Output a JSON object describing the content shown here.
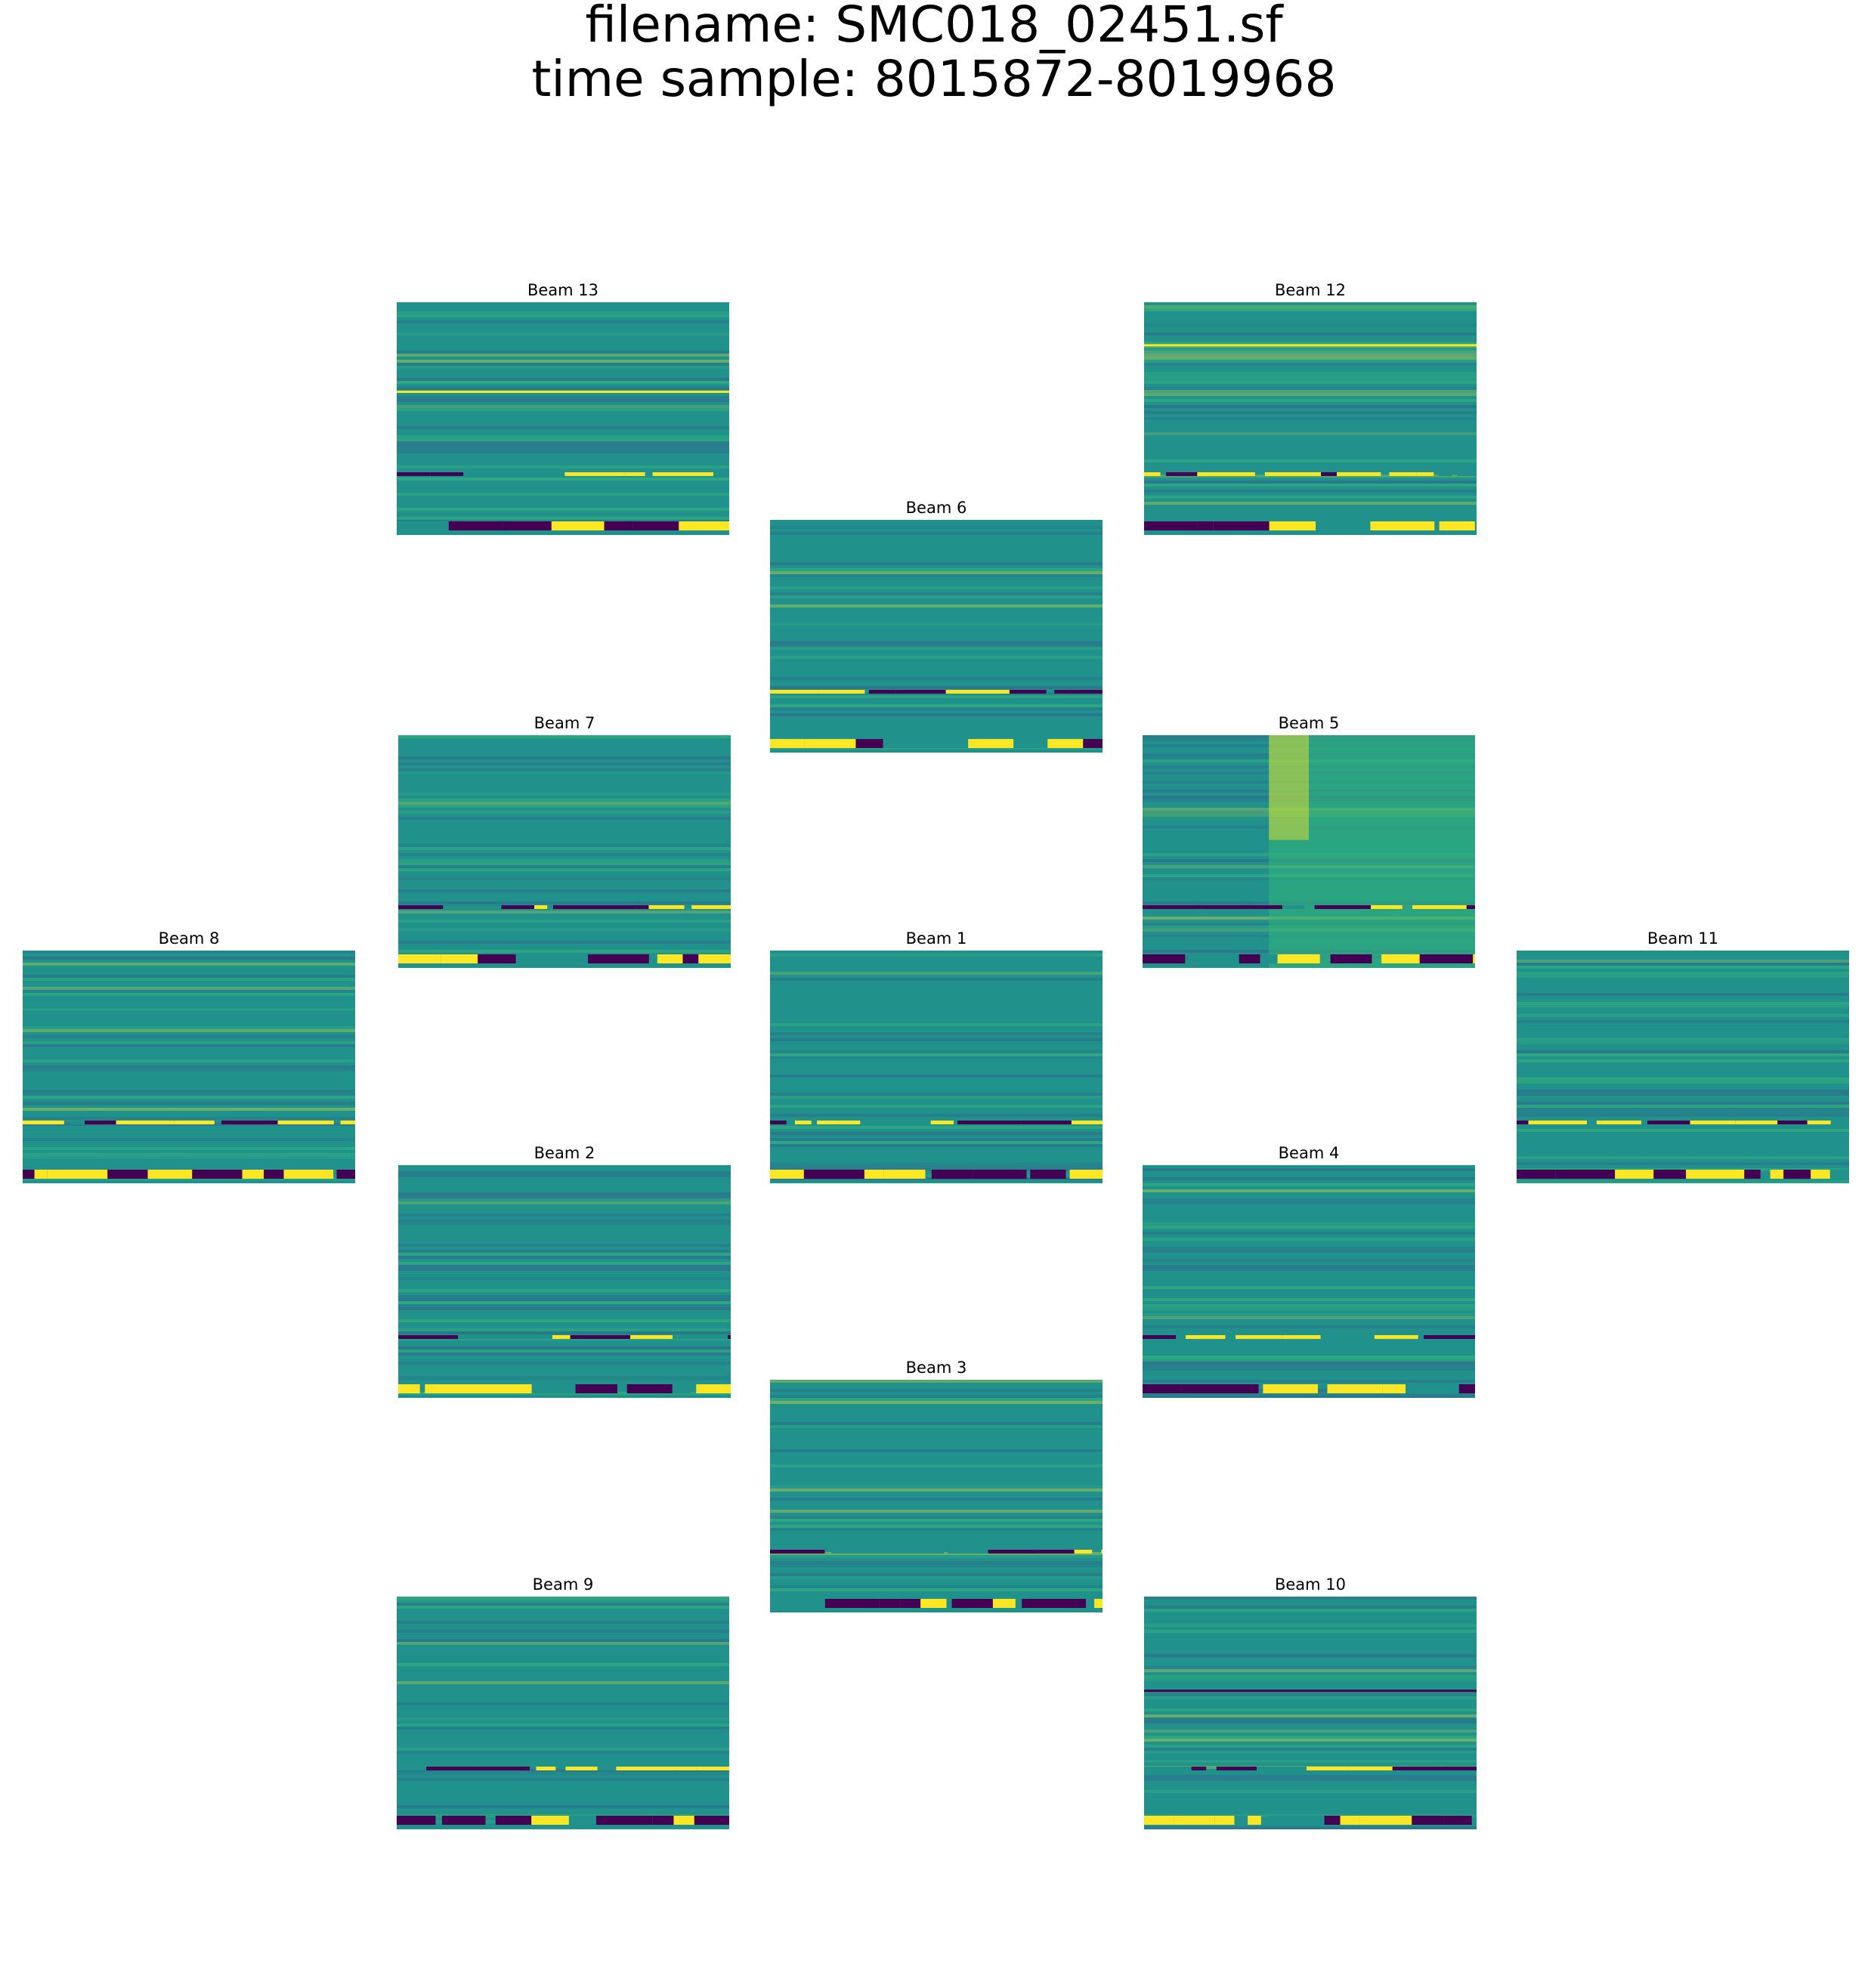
{
  "figure": {
    "title_line1": "filename: SMC018_02451.sf",
    "title_line2": "time sample: 8015872-8019968"
  },
  "colors": {
    "background": "#ffffff",
    "viridis_low": "#440154",
    "viridis_mid_dark": "#31688e",
    "viridis_mid": "#21918c",
    "viridis_mid_light": "#35b779",
    "viridis_high": "#fde725"
  },
  "chart_data": [
    {
      "type": "heatmap",
      "title": "Beam 13",
      "colormap": "viridis",
      "axes": "off",
      "features": {
        "persistent_bright_line_frac": 0.38,
        "band_frac": 0.73,
        "bottom_band": true
      }
    },
    {
      "type": "heatmap",
      "title": "Beam 12",
      "colormap": "viridis",
      "axes": "off",
      "features": {
        "persistent_bright_line_frac": 0.18,
        "band_frac": 0.73,
        "bottom_band": true
      }
    },
    {
      "type": "heatmap",
      "title": "Beam 6",
      "colormap": "viridis",
      "axes": "off",
      "features": {
        "band_frac": 0.73,
        "bottom_band": true
      }
    },
    {
      "type": "heatmap",
      "title": "Beam 7",
      "colormap": "viridis",
      "axes": "off",
      "features": {
        "band_frac": 0.73,
        "bottom_band": true
      }
    },
    {
      "type": "heatmap",
      "title": "Beam 5",
      "colormap": "viridis",
      "axes": "off",
      "features": {
        "band_frac": 0.73,
        "bottom_band": true,
        "bright_region_start_frac": 0.38
      }
    },
    {
      "type": "heatmap",
      "title": "Beam 8",
      "colormap": "viridis",
      "axes": "off",
      "features": {
        "band_frac": 0.73,
        "bottom_band": true
      }
    },
    {
      "type": "heatmap",
      "title": "Beam 1",
      "colormap": "viridis",
      "axes": "off",
      "features": {
        "band_frac": 0.73,
        "bottom_band": true
      }
    },
    {
      "type": "heatmap",
      "title": "Beam 11",
      "colormap": "viridis",
      "axes": "off",
      "features": {
        "band_frac": 0.73,
        "bottom_band": true
      }
    },
    {
      "type": "heatmap",
      "title": "Beam 2",
      "colormap": "viridis",
      "axes": "off",
      "features": {
        "band_frac": 0.73,
        "bottom_band": true
      }
    },
    {
      "type": "heatmap",
      "title": "Beam 4",
      "colormap": "viridis",
      "axes": "off",
      "features": {
        "band_frac": 0.73,
        "bottom_band": true
      }
    },
    {
      "type": "heatmap",
      "title": "Beam 3",
      "colormap": "viridis",
      "axes": "off",
      "features": {
        "band_frac": 0.73,
        "bottom_band": true
      }
    },
    {
      "type": "heatmap",
      "title": "Beam 9",
      "colormap": "viridis",
      "axes": "off",
      "features": {
        "band_frac": 0.73,
        "bottom_band": true
      }
    },
    {
      "type": "heatmap",
      "title": "Beam 10",
      "colormap": "viridis",
      "axes": "off",
      "features": {
        "persistent_dark_line_frac": 0.4,
        "band_frac": 0.73,
        "bottom_band": true
      }
    }
  ]
}
